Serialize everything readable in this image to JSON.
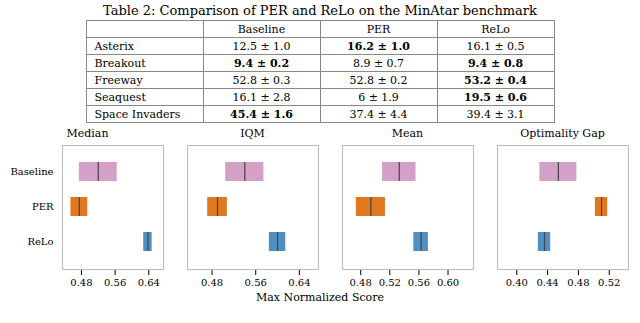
{
  "title": "Table 2: Comparison of PER and ReLo on the MinAtar benchmark",
  "table": {
    "col_labels": [
      "",
      "Baseline",
      "PER",
      "ReLo"
    ],
    "rows": [
      [
        "Asterix",
        "12.5 ± 1.0",
        "16.2 ± 1.0",
        "16.1 ± 0.5"
      ],
      [
        "Breakout",
        "9.4 ± 0.2",
        "8.9 ± 0.7",
        "9.4 ± 0.8"
      ],
      [
        "Freeway",
        "52.8 ± 0.3",
        "52.8 ± 0.2",
        "53.2 ± 0.4"
      ],
      [
        "Seaquest",
        "16.1 ± 2.8",
        "6 ± 1.9",
        "19.5 ± 0.6"
      ],
      [
        "Space Invaders",
        "45.4 ± 1.6",
        "37.4 ± 4.4",
        "39.4 ± 3.1"
      ]
    ],
    "bold": [
      [
        false,
        false,
        true,
        false
      ],
      [
        false,
        true,
        false,
        true
      ],
      [
        false,
        false,
        false,
        true
      ],
      [
        false,
        false,
        false,
        true
      ],
      [
        false,
        true,
        false,
        false
      ]
    ]
  },
  "xlabel": "Max Normalized Score",
  "chart_data": [
    {
      "type": "bar",
      "orientation": "horizontal",
      "title": "Median",
      "categories": [
        "Baseline",
        "PER",
        "ReLo"
      ],
      "values": [
        0.52,
        0.475,
        0.638
      ],
      "low": [
        0.475,
        0.455,
        0.628
      ],
      "high": [
        0.565,
        0.495,
        0.648
      ],
      "colors": [
        "#d4a0c8",
        "#e07820",
        "#5090c0"
      ],
      "xlim": [
        0.435,
        0.675
      ],
      "xticks": [
        0.48,
        0.56,
        0.64
      ]
    },
    {
      "type": "bar",
      "orientation": "horizontal",
      "title": "IQM",
      "categories": [
        "Baseline",
        "PER",
        "ReLo"
      ],
      "values": [
        0.54,
        0.49,
        0.6
      ],
      "low": [
        0.505,
        0.472,
        0.585
      ],
      "high": [
        0.575,
        0.508,
        0.615
      ],
      "colors": [
        "#d4a0c8",
        "#e07820",
        "#5090c0"
      ],
      "xlim": [
        0.435,
        0.675
      ],
      "xticks": [
        0.48,
        0.56,
        0.64
      ],
      "tick_labels": "x"
    },
    {
      "type": "bar",
      "orientation": "horizontal",
      "title": "Mean",
      "categories": [
        "Baseline",
        "PER",
        "ReLo"
      ],
      "values": [
        0.533,
        0.494,
        0.563
      ],
      "low": [
        0.51,
        0.474,
        0.553
      ],
      "high": [
        0.556,
        0.514,
        0.573
      ],
      "colors": [
        "#d4a0c8",
        "#e07820",
        "#5090c0"
      ],
      "xlim": [
        0.455,
        0.635
      ],
      "xticks": [
        0.48,
        0.52,
        0.56,
        {
          "value": 0.6,
          "label": "0.60"
        }
      ],
      "tick_labels": "x"
    },
    {
      "type": "bar",
      "orientation": "horizontal",
      "title": "Optimality Gap",
      "categories": [
        "Baseline",
        "PER",
        "ReLo"
      ],
      "values": [
        0.454,
        0.51,
        0.436
      ],
      "low": [
        0.43,
        0.502,
        0.428
      ],
      "high": [
        0.478,
        0.518,
        0.444
      ],
      "colors": [
        "#d4a0c8",
        "#e07820",
        "#5090c0"
      ],
      "xlim": [
        0.375,
        0.545
      ],
      "xticks": [
        {
          "value": 0.4,
          "label": "0.40"
        },
        0.44,
        0.48,
        0.52
      ],
      "tick_labels": "x"
    }
  ]
}
